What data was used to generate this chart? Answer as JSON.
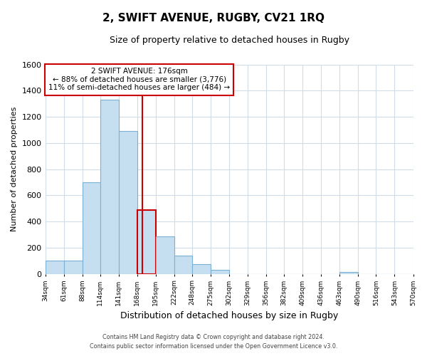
{
  "title": "2, SWIFT AVENUE, RUGBY, CV21 1RQ",
  "subtitle": "Size of property relative to detached houses in Rugby",
  "xlabel": "Distribution of detached houses by size in Rugby",
  "ylabel": "Number of detached properties",
  "bin_edges": [
    34,
    61,
    88,
    114,
    141,
    168,
    195,
    222,
    248,
    275,
    302,
    329,
    356,
    382,
    409,
    436,
    463,
    490,
    516,
    543,
    570
  ],
  "bar_heights": [
    100,
    100,
    700,
    1330,
    1090,
    490,
    285,
    140,
    75,
    30,
    0,
    0,
    0,
    0,
    0,
    0,
    15,
    0,
    0,
    0
  ],
  "highlight_bin_index": 5,
  "property_size": 176,
  "property_label": "2 SWIFT AVENUE: 176sqm",
  "annotation_line1": "← 88% of detached houses are smaller (3,776)",
  "annotation_line2": "11% of semi-detached houses are larger (484) →",
  "bar_color": "#c5dff0",
  "bar_edge_color": "#7ab0d4",
  "highlight_bar_edge_color": "#cc0000",
  "vline_color": "#cc0000",
  "annotation_box_color": "#ffffff",
  "annotation_box_edge": "#cc0000",
  "ylim": [
    0,
    1600
  ],
  "yticks": [
    0,
    200,
    400,
    600,
    800,
    1000,
    1200,
    1400,
    1600
  ],
  "footer_line1": "Contains HM Land Registry data © Crown copyright and database right 2024.",
  "footer_line2": "Contains public sector information licensed under the Open Government Licence v3.0.",
  "background_color": "#ffffff",
  "plot_bg_color": "#ffffff",
  "grid_color": "#d0dde8"
}
